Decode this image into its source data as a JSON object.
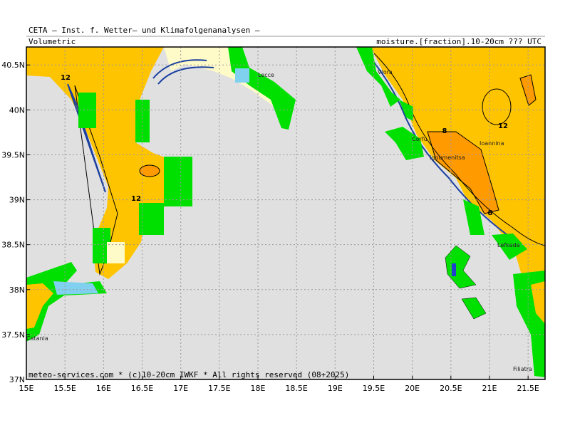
{
  "header": {
    "title": "CETA – Inst. f. Wetter– und Klimafolgenanalysen –",
    "subtitle": "Volumetric",
    "field": "moisture.[fraction].10-20cm ??? UTC"
  },
  "footer": "meteo-services.com * (c)10-20cm IWKF * All rights reserved (08+2025)",
  "map": {
    "xlim": [
      15,
      21.72
    ],
    "ylim": [
      37,
      40.7
    ],
    "grid": true,
    "xticks": [
      {
        "value": 15,
        "label": "15E"
      },
      {
        "value": 15.5,
        "label": "15.5E"
      },
      {
        "value": 16,
        "label": "16E"
      },
      {
        "value": 16.5,
        "label": "16.5E"
      },
      {
        "value": 17,
        "label": "17E"
      },
      {
        "value": 17.5,
        "label": "17.5E"
      },
      {
        "value": 18,
        "label": "18E"
      },
      {
        "value": 18.5,
        "label": "18.5E"
      },
      {
        "value": 19,
        "label": "19E"
      },
      {
        "value": 19.5,
        "label": "19.5E"
      },
      {
        "value": 20,
        "label": "20E"
      },
      {
        "value": 20.5,
        "label": "20.5E"
      },
      {
        "value": 21,
        "label": "21E"
      },
      {
        "value": 21.5,
        "label": "21.5E"
      }
    ],
    "yticks": [
      {
        "value": 37,
        "label": "37N"
      },
      {
        "value": 37.5,
        "label": "37.5N"
      },
      {
        "value": 38,
        "label": "38N"
      },
      {
        "value": 38.5,
        "label": "38.5N"
      },
      {
        "value": 39,
        "label": "39N"
      },
      {
        "value": 39.5,
        "label": "39.5N"
      },
      {
        "value": 40,
        "label": "40N"
      },
      {
        "value": 40.5,
        "label": "40.5N"
      }
    ]
  },
  "labels": {
    "contours": [
      "12",
      "12",
      "8",
      "8",
      "12"
    ],
    "places": [
      "Lecce",
      "Vlora",
      "Corfu",
      "Igoumenitsa",
      "Ioannina",
      "Lefkada",
      "Catania",
      "Filiatra"
    ]
  }
}
